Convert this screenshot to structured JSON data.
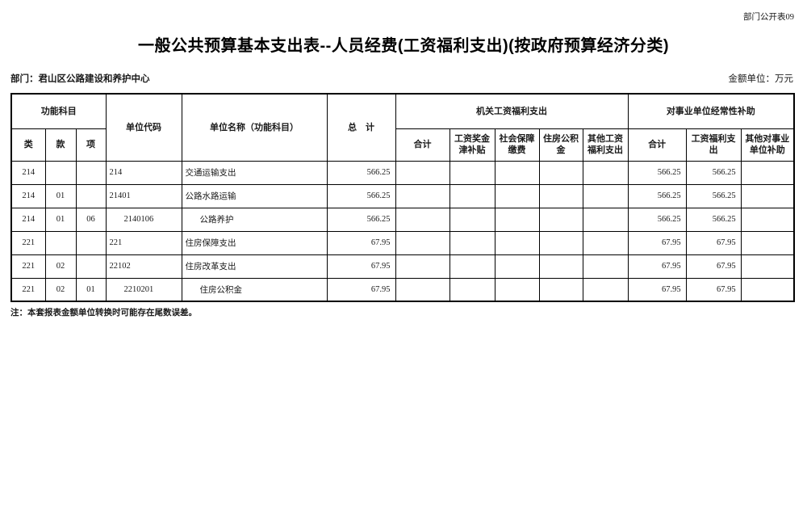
{
  "page": {
    "corner_label": "部门公开表09",
    "title": "一般公共预算基本支出表--人员经费(工资福利支出)(按政府预算经济分类)",
    "department": "部门：君山区公路建设和养护中心",
    "amount_unit": "金额单位：万元",
    "footnote": "注：本套报表金额单位转换时可能存在尾数误差。"
  },
  "table": {
    "header": {
      "func_group": "功能科目",
      "col_class": "类",
      "col_section": "款",
      "col_item": "项",
      "unit_code": "单位代码",
      "unit_name": "单位名称（功能科目）",
      "grand_total": "总　计",
      "org_group": "机关工资福利支出",
      "org_sub": [
        "合计",
        "工资奖金津补贴",
        "社会保障缴费",
        "住房公积金",
        "其他工资福利支出"
      ],
      "inst_group": "对事业单位经常性补助",
      "inst_sub": [
        "合计",
        "工资福利支出",
        "其他对事业单位补助"
      ]
    },
    "rows": [
      {
        "cls": "214",
        "sec": "",
        "itm": "",
        "code": "214",
        "name": "交通运输支出",
        "indent": false,
        "total": "566.25",
        "org": [
          "",
          "",
          "",
          "",
          ""
        ],
        "inst": [
          "566.25",
          "566.25",
          ""
        ]
      },
      {
        "cls": "214",
        "sec": "01",
        "itm": "",
        "code": "21401",
        "name": "公路水路运输",
        "indent": false,
        "total": "566.25",
        "org": [
          "",
          "",
          "",
          "",
          ""
        ],
        "inst": [
          "566.25",
          "566.25",
          ""
        ]
      },
      {
        "cls": "214",
        "sec": "01",
        "itm": "06",
        "code": "2140106",
        "name": "公路养护",
        "indent": true,
        "total": "566.25",
        "org": [
          "",
          "",
          "",
          "",
          ""
        ],
        "inst": [
          "566.25",
          "566.25",
          ""
        ]
      },
      {
        "cls": "221",
        "sec": "",
        "itm": "",
        "code": "221",
        "name": "住房保障支出",
        "indent": false,
        "total": "67.95",
        "org": [
          "",
          "",
          "",
          "",
          ""
        ],
        "inst": [
          "67.95",
          "67.95",
          ""
        ]
      },
      {
        "cls": "221",
        "sec": "02",
        "itm": "",
        "code": "22102",
        "name": "住房改革支出",
        "indent": false,
        "total": "67.95",
        "org": [
          "",
          "",
          "",
          "",
          ""
        ],
        "inst": [
          "67.95",
          "67.95",
          ""
        ]
      },
      {
        "cls": "221",
        "sec": "02",
        "itm": "01",
        "code": "2210201",
        "name": "住房公积金",
        "indent": true,
        "total": "67.95",
        "org": [
          "",
          "",
          "",
          "",
          ""
        ],
        "inst": [
          "67.95",
          "67.95",
          ""
        ]
      }
    ]
  }
}
